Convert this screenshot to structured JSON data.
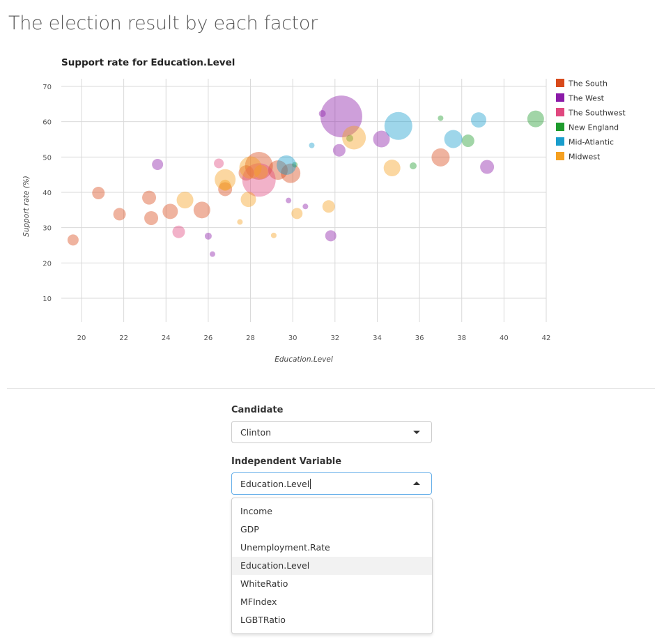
{
  "page": {
    "title": "The election result by each factor"
  },
  "chart_data": {
    "type": "scatter",
    "title": "Support rate for Education.Level",
    "xlabel": "Education.Level",
    "ylabel": "Support rate (%)",
    "xlim": [
      19.5,
      42
    ],
    "ylim": [
      5,
      72
    ],
    "xticks": [
      20,
      22,
      24,
      26,
      28,
      30,
      32,
      34,
      36,
      38,
      40,
      42
    ],
    "yticks": [
      10,
      20,
      30,
      40,
      50,
      60,
      70
    ],
    "grid": true,
    "legend_position": "right",
    "series": [
      {
        "name": "The South",
        "color": "#d84a1b",
        "points": [
          {
            "x": 19.6,
            "y": 26.5,
            "r": 8
          },
          {
            "x": 20.8,
            "y": 39.8,
            "r": 9
          },
          {
            "x": 21.8,
            "y": 33.8,
            "r": 9
          },
          {
            "x": 23.2,
            "y": 38.5,
            "r": 10
          },
          {
            "x": 23.3,
            "y": 32.7,
            "r": 10
          },
          {
            "x": 24.2,
            "y": 34.6,
            "r": 11
          },
          {
            "x": 25.7,
            "y": 35.0,
            "r": 12
          },
          {
            "x": 26.8,
            "y": 40.9,
            "r": 10
          },
          {
            "x": 27.8,
            "y": 45.5,
            "r": 11
          },
          {
            "x": 28.4,
            "y": 47.5,
            "r": 20
          },
          {
            "x": 29.3,
            "y": 46.3,
            "r": 14
          },
          {
            "x": 29.9,
            "y": 45.4,
            "r": 14
          },
          {
            "x": 37.0,
            "y": 49.9,
            "r": 13
          }
        ]
      },
      {
        "name": "The West",
        "color": "#8b1aa8",
        "points": [
          {
            "x": 23.6,
            "y": 47.9,
            "r": 8
          },
          {
            "x": 26.0,
            "y": 27.6,
            "r": 5
          },
          {
            "x": 26.2,
            "y": 22.5,
            "r": 4
          },
          {
            "x": 29.8,
            "y": 37.7,
            "r": 4
          },
          {
            "x": 30.6,
            "y": 36.0,
            "r": 4
          },
          {
            "x": 31.4,
            "y": 62.3,
            "r": 5
          },
          {
            "x": 31.8,
            "y": 27.7,
            "r": 8
          },
          {
            "x": 32.2,
            "y": 51.9,
            "r": 9
          },
          {
            "x": 32.3,
            "y": 61.5,
            "r": 30
          },
          {
            "x": 34.2,
            "y": 55.1,
            "r": 12
          },
          {
            "x": 39.2,
            "y": 47.2,
            "r": 10
          }
        ]
      },
      {
        "name": "The Southwest",
        "color": "#e0487f",
        "points": [
          {
            "x": 24.6,
            "y": 28.8,
            "r": 9
          },
          {
            "x": 26.5,
            "y": 48.2,
            "r": 7
          },
          {
            "x": 28.4,
            "y": 43.5,
            "r": 24
          }
        ]
      },
      {
        "name": "New England",
        "color": "#1e9b2d",
        "points": [
          {
            "x": 30.1,
            "y": 47.8,
            "r": 4
          },
          {
            "x": 32.7,
            "y": 55.3,
            "r": 5
          },
          {
            "x": 35.7,
            "y": 47.5,
            "r": 5
          },
          {
            "x": 37.0,
            "y": 61.0,
            "r": 4
          },
          {
            "x": 38.3,
            "y": 54.6,
            "r": 9
          },
          {
            "x": 41.5,
            "y": 60.8,
            "r": 12
          }
        ]
      },
      {
        "name": "Mid-Atlantic",
        "color": "#199dcc",
        "points": [
          {
            "x": 29.7,
            "y": 47.7,
            "r": 14
          },
          {
            "x": 30.9,
            "y": 53.3,
            "r": 4
          },
          {
            "x": 35.0,
            "y": 58.8,
            "r": 20
          },
          {
            "x": 37.6,
            "y": 55.1,
            "r": 13
          },
          {
            "x": 38.8,
            "y": 60.5,
            "r": 11
          }
        ]
      },
      {
        "name": "Midwest",
        "color": "#f5a020",
        "points": [
          {
            "x": 24.9,
            "y": 37.8,
            "r": 12
          },
          {
            "x": 26.8,
            "y": 43.6,
            "r": 15
          },
          {
            "x": 26.8,
            "y": 42.0,
            "r": 8
          },
          {
            "x": 27.5,
            "y": 31.6,
            "r": 4
          },
          {
            "x": 27.9,
            "y": 38.0,
            "r": 11
          },
          {
            "x": 28.0,
            "y": 47.0,
            "r": 16
          },
          {
            "x": 28.5,
            "y": 45.8,
            "r": 10
          },
          {
            "x": 29.1,
            "y": 27.8,
            "r": 4
          },
          {
            "x": 30.2,
            "y": 34.0,
            "r": 8
          },
          {
            "x": 31.7,
            "y": 36.0,
            "r": 9
          },
          {
            "x": 32.9,
            "y": 55.5,
            "r": 17
          },
          {
            "x": 34.7,
            "y": 46.9,
            "r": 12
          }
        ]
      }
    ]
  },
  "controls": {
    "candidate": {
      "label": "Candidate",
      "selected": "Clinton"
    },
    "independent_variable": {
      "label": "Independent Variable",
      "selected": "Education.Level",
      "options": [
        "Income",
        "GDP",
        "Unemployment.Rate",
        "Education.Level",
        "WhiteRatio",
        "MFIndex",
        "LGBTRatio"
      ],
      "active_index": 3
    }
  }
}
